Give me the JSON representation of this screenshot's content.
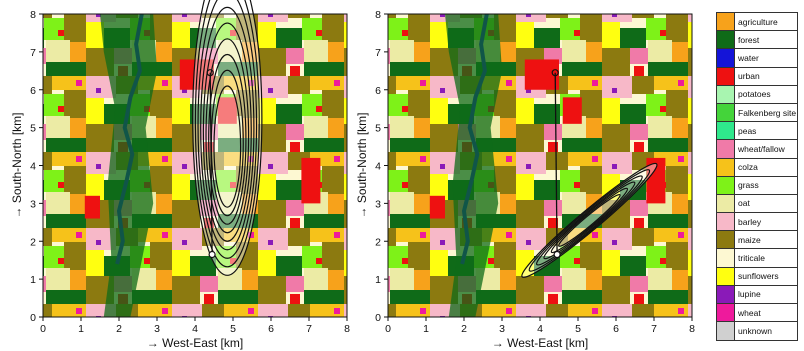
{
  "axes": {
    "x_label": "→ West-East [km]",
    "y_label": "→ South-North [km]",
    "x_ticks": [
      "0",
      "1",
      "2",
      "3",
      "4",
      "5",
      "6",
      "7",
      "8"
    ],
    "y_ticks": [
      "0",
      "1",
      "2",
      "3",
      "4",
      "5",
      "6",
      "7",
      "8"
    ],
    "x_range": [
      0,
      8
    ],
    "y_range": [
      0,
      8
    ]
  },
  "legend": [
    {
      "label": "agriculture",
      "color": "#f7a21b"
    },
    {
      "label": "forest",
      "color": "#0f6b18"
    },
    {
      "label": "water",
      "color": "#1414d8"
    },
    {
      "label": "urban",
      "color": "#ee1111"
    },
    {
      "label": "potatoes",
      "color": "#a8f5b0"
    },
    {
      "label": "Falkenberg site",
      "color": "#44d43a"
    },
    {
      "label": "peas",
      "color": "#2fe88c"
    },
    {
      "label": "wheat/fallow",
      "color": "#f07aa8"
    },
    {
      "label": "colza",
      "color": "#f6c21a"
    },
    {
      "label": "grass",
      "color": "#7ef218"
    },
    {
      "label": "oat",
      "color": "#eceba5"
    },
    {
      "label": "barley",
      "color": "#f7b8c8"
    },
    {
      "label": "maize",
      "color": "#8c7a10"
    },
    {
      "label": "triticale",
      "color": "#fdf8d2"
    },
    {
      "label": "sunflowers",
      "color": "#ffff10"
    },
    {
      "label": "lupine",
      "color": "#8a1ab8"
    },
    {
      "label": "wheat",
      "color": "#ee1a9c"
    },
    {
      "label": "unknown",
      "color": "#d0d0d0"
    }
  ],
  "maps": [
    {
      "name": "left",
      "tower": [
        4.45,
        1.65
      ],
      "path_end": [
        4.4,
        6.45
      ],
      "footprint": {
        "cx": 4.85,
        "cy": 4.5,
        "rx": 0.35,
        "ry": 1.6,
        "tilt": 0,
        "levels": 9,
        "spread": 2.6
      }
    },
    {
      "name": "right",
      "tower": [
        4.45,
        1.65
      ],
      "path_end": [
        4.4,
        6.45
      ],
      "footprint": {
        "cx": 5.3,
        "cy": 2.55,
        "rx": 1.05,
        "ry": 0.12,
        "tilt": -40,
        "levels": 6,
        "spread": 2.2
      }
    }
  ]
}
